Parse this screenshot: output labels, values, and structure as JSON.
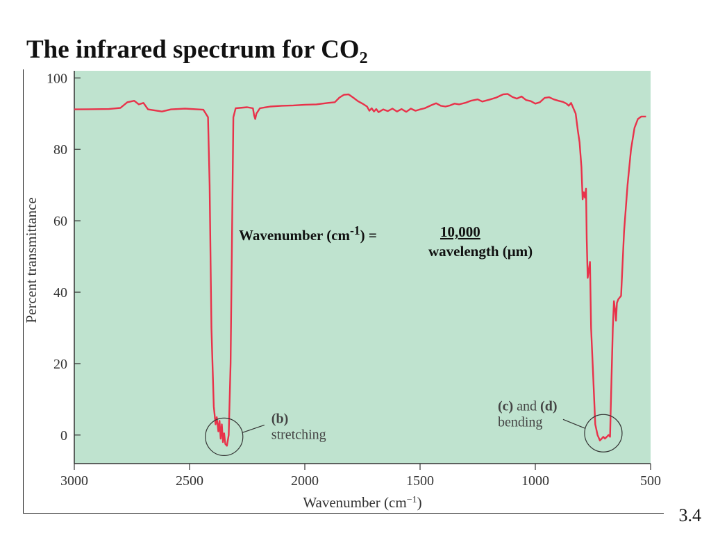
{
  "slide": {
    "title_main": "The infrared spectrum for CO",
    "title_sub": "2",
    "slide_number": "3.4"
  },
  "formula": {
    "lhs_prefix": "Wavenumber (cm",
    "lhs_sup": "-1",
    "lhs_suffix": ") =",
    "numerator": "10,000",
    "denominator": "wavelength (μm)"
  },
  "colors": {
    "plot_background": "#bfe3cf",
    "spectrum_line": "#e8324a",
    "axis": "#333333"
  },
  "chart_data": {
    "type": "line",
    "title": "",
    "xlabel": "Wavenumber (cm",
    "xlabel_sup": "−1",
    "xlabel_suffix": ")",
    "ylabel": "Percent transmittance",
    "xlim": [
      3000,
      500
    ],
    "ylim": [
      -8,
      102
    ],
    "x_reversed": true,
    "grid": false,
    "x_ticks": [
      3000,
      2500,
      2000,
      1500,
      1000,
      500
    ],
    "y_ticks": [
      0,
      20,
      40,
      60,
      80,
      100
    ],
    "series": [
      {
        "points": [
          [
            3000,
            91.2
          ],
          [
            2850,
            91.3
          ],
          [
            2800,
            91.6
          ],
          [
            2770,
            93.2
          ],
          [
            2740,
            93.6
          ],
          [
            2720,
            92.6
          ],
          [
            2700,
            93.0
          ],
          [
            2680,
            91.2
          ],
          [
            2620,
            90.6
          ],
          [
            2580,
            91.2
          ],
          [
            2520,
            91.4
          ],
          [
            2440,
            91.1
          ],
          [
            2420,
            89.0
          ],
          [
            2413,
            70.0
          ],
          [
            2405,
            30.0
          ],
          [
            2395,
            8.0
          ],
          [
            2387,
            3.0
          ],
          [
            2382,
            5.0
          ],
          [
            2375,
            1.0
          ],
          [
            2370,
            4.0
          ],
          [
            2365,
            -1.0
          ],
          [
            2360,
            3.0
          ],
          [
            2355,
            -2.0
          ],
          [
            2350,
            0.5
          ],
          [
            2345,
            -2.5
          ],
          [
            2338,
            -3.0
          ],
          [
            2330,
            0.0
          ],
          [
            2322,
            20.0
          ],
          [
            2315,
            60.0
          ],
          [
            2310,
            89.0
          ],
          [
            2300,
            91.5
          ],
          [
            2250,
            91.8
          ],
          [
            2225,
            91.5
          ],
          [
            2220,
            89.5
          ],
          [
            2215,
            88.5
          ],
          [
            2210,
            90.0
          ],
          [
            2195,
            91.5
          ],
          [
            2150,
            92.0
          ],
          [
            2100,
            92.2
          ],
          [
            2050,
            92.3
          ],
          [
            2000,
            92.5
          ],
          [
            1950,
            92.6
          ],
          [
            1900,
            93.0
          ],
          [
            1870,
            93.2
          ],
          [
            1850,
            94.5
          ],
          [
            1830,
            95.3
          ],
          [
            1810,
            95.4
          ],
          [
            1790,
            94.5
          ],
          [
            1770,
            93.5
          ],
          [
            1750,
            92.8
          ],
          [
            1730,
            92.0
          ],
          [
            1720,
            90.8
          ],
          [
            1710,
            91.5
          ],
          [
            1700,
            90.6
          ],
          [
            1690,
            91.3
          ],
          [
            1680,
            90.4
          ],
          [
            1660,
            91.2
          ],
          [
            1640,
            90.7
          ],
          [
            1620,
            91.4
          ],
          [
            1600,
            90.6
          ],
          [
            1580,
            91.3
          ],
          [
            1560,
            90.5
          ],
          [
            1540,
            91.4
          ],
          [
            1520,
            90.8
          ],
          [
            1500,
            91.2
          ],
          [
            1480,
            91.5
          ],
          [
            1450,
            92.4
          ],
          [
            1430,
            92.9
          ],
          [
            1410,
            92.2
          ],
          [
            1390,
            92.0
          ],
          [
            1370,
            92.3
          ],
          [
            1350,
            92.8
          ],
          [
            1330,
            92.6
          ],
          [
            1300,
            93.1
          ],
          [
            1280,
            93.6
          ],
          [
            1250,
            94.0
          ],
          [
            1230,
            93.4
          ],
          [
            1200,
            93.9
          ],
          [
            1170,
            94.5
          ],
          [
            1140,
            95.4
          ],
          [
            1120,
            95.5
          ],
          [
            1100,
            94.7
          ],
          [
            1080,
            94.2
          ],
          [
            1060,
            94.8
          ],
          [
            1040,
            93.8
          ],
          [
            1020,
            93.5
          ],
          [
            1000,
            92.8
          ],
          [
            980,
            93.2
          ],
          [
            960,
            94.4
          ],
          [
            940,
            94.6
          ],
          [
            920,
            94.0
          ],
          [
            900,
            93.6
          ],
          [
            880,
            93.3
          ],
          [
            865,
            92.8
          ],
          [
            855,
            92.2
          ],
          [
            845,
            93.0
          ],
          [
            835,
            91.5
          ],
          [
            825,
            90.0
          ],
          [
            815,
            85.0
          ],
          [
            808,
            82.0
          ],
          [
            800,
            75.0
          ],
          [
            795,
            66.0
          ],
          [
            790,
            68.0
          ],
          [
            785,
            66.5
          ],
          [
            780,
            69.0
          ],
          [
            777,
            55.0
          ],
          [
            773,
            44.0
          ],
          [
            768,
            46.0
          ],
          [
            763,
            48.5
          ],
          [
            758,
            30.0
          ],
          [
            750,
            18.0
          ],
          [
            740,
            3.0
          ],
          [
            730,
            0.0
          ],
          [
            720,
            -1.5
          ],
          [
            712,
            -1.0
          ],
          [
            705,
            -0.5
          ],
          [
            698,
            -1.0
          ],
          [
            690,
            -0.5
          ],
          [
            682,
            0.0
          ],
          [
            676,
            -0.5
          ],
          [
            670,
            15.0
          ],
          [
            664,
            30.0
          ],
          [
            659,
            37.5
          ],
          [
            654,
            35.0
          ],
          [
            650,
            32.0
          ],
          [
            646,
            37.0
          ],
          [
            640,
            38.0
          ],
          [
            628,
            39.0
          ],
          [
            615,
            57.0
          ],
          [
            600,
            70.0
          ],
          [
            585,
            80.0
          ],
          [
            570,
            86.0
          ],
          [
            555,
            88.5
          ],
          [
            540,
            89.2
          ],
          [
            520,
            89.2
          ]
        ]
      }
    ],
    "annotations": [
      {
        "bold": "(b)",
        "text": "stretching",
        "x": 2350,
        "y": -0.5
      },
      {
        "bold1": "(c)",
        "mid": " and ",
        "bold2": "(d)",
        "text": "bending",
        "x": 705,
        "y": 0.5
      }
    ]
  }
}
